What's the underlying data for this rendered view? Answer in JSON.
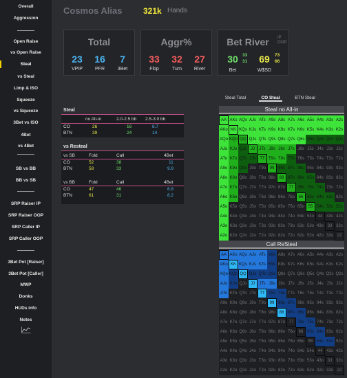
{
  "sidebar": {
    "items": [
      "Overall",
      "Aggression",
      "Open Raise",
      "vs Open Raise",
      "Steal",
      "vs Steal",
      "Limp & ISO",
      "Squeeze",
      "vs Squeeze",
      "3Bet vs ISO",
      "4Bet",
      "vs 4Bet",
      "SB vs BB",
      "BB vs SB",
      "SRP Raiser IP",
      "SRP Raiser OOP",
      "SRP Caller IP",
      "SRP Caller OOP",
      "3Bet Pot [Raiser]",
      "3Bet Pot [Caller]",
      "MWP",
      "Donks",
      "HUDs info",
      "Notes"
    ],
    "active": "Steal",
    "chart_icon": "line-chart-icon"
  },
  "header": {
    "player": "Cosmos Alias",
    "hands": "321k",
    "hands_label": "Hands"
  },
  "total": {
    "title": "Total",
    "vpip": "23",
    "pfr": "16",
    "threebet": "7",
    "vpip_label": "VPIP",
    "pfr_label": "PFR",
    "threebet_label": "3Bet"
  },
  "aggr": {
    "title": "Aggr%",
    "flop": "33",
    "turn": "32",
    "river": "27",
    "flop_label": "Flop",
    "turn_label": "Turn",
    "river_label": "River"
  },
  "betriver": {
    "title": "Bet River",
    "ip": "IP",
    "oop": "OOP",
    "bet": "30",
    "bet_ip": "33",
    "bet_oop": "31",
    "wsd": "69",
    "wsd_ip": "73",
    "wsd_oop": "66",
    "bet_label": "Bet",
    "wsd_label": "W$SD"
  },
  "steal_table": {
    "title": "Steal",
    "headers": [
      "no All-in",
      "2.0-2.5 bb",
      "2.5-3.0 bb"
    ],
    "rows": [
      {
        "pos": "CO",
        "v": [
          "26",
          "16",
          "8.7"
        ]
      },
      {
        "pos": "BTN",
        "v": [
          "39",
          "24",
          "14"
        ]
      }
    ]
  },
  "resteal_table": {
    "title": "vs Resteal",
    "groups": [
      {
        "label": "vs SB",
        "headers": [
          "Fold",
          "Call",
          "4Bet"
        ],
        "rows": [
          {
            "pos": "CO",
            "v": [
              "52",
              "38",
              "11"
            ]
          },
          {
            "pos": "BTN",
            "v": [
              "58",
              "33",
              "9.9"
            ]
          }
        ]
      },
      {
        "label": "vs BB",
        "headers": [
          "Fold",
          "Call",
          "4Bet"
        ],
        "rows": [
          {
            "pos": "CO",
            "v": [
              "47",
              "46",
              "6.8"
            ]
          },
          {
            "pos": "BTN",
            "v": [
              "61",
              "31",
              "8.2"
            ]
          }
        ]
      }
    ]
  },
  "tabs": [
    "Steal Total",
    "CO Steal",
    "BTN Steal"
  ],
  "active_tab": "CO Steal",
  "grid1": {
    "title": "Steal no All-in"
  },
  "grid2": {
    "title": "Call ReSteal"
  },
  "ranks": [
    "A",
    "K",
    "Q",
    "J",
    "T",
    "9",
    "8",
    "7",
    "6",
    "5",
    "4",
    "3",
    "2"
  ],
  "colors": {
    "bright_green": "#3ee43a",
    "mid_green": "#1fb01c",
    "dark_green": "#0d5e0f",
    "yellow_green": "#b6f03a",
    "bright_blue": "#2fb8f5",
    "mid_blue": "#2478dc",
    "dark_blue": "#123e86",
    "empty": "#1e1f22"
  }
}
